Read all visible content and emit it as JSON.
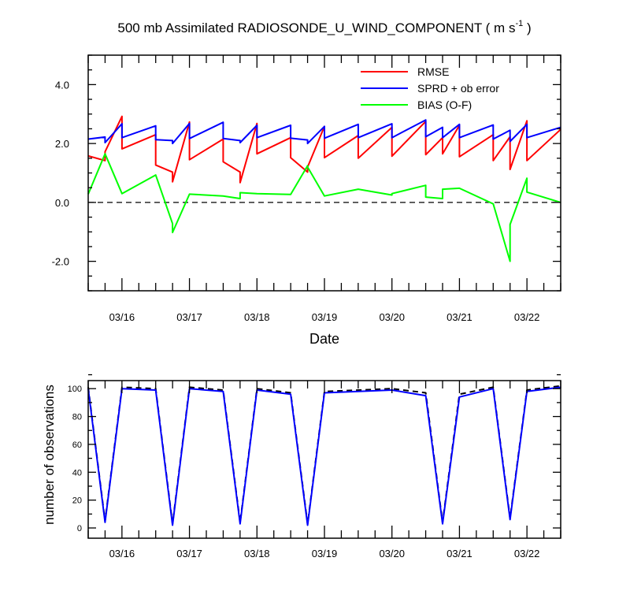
{
  "title": {
    "main": "500 mb Assimilated RADIOSONDE_U_WIND_COMPONENT ( m s",
    "superscript": "-1",
    "tail": " )"
  },
  "colors": {
    "rmse": "#ff0000",
    "sprd": "#0000ff",
    "bias": "#00ff00",
    "dashed": "#000000"
  },
  "chart_data": [
    {
      "type": "line",
      "title": "500 mb Assimilated RADIOSONDE_U_WIND_COMPONENT ( m s-1 )",
      "xlabel": "Date",
      "ylabel": "",
      "xlim": [
        0,
        7
      ],
      "ylim": [
        -3.0,
        5.0
      ],
      "grid": false,
      "legend_position": "top-right",
      "x_ticks": [
        {
          "x": 0.5,
          "label": "03/16"
        },
        {
          "x": 1.5,
          "label": "03/17"
        },
        {
          "x": 2.5,
          "label": "03/18"
        },
        {
          "x": 3.5,
          "label": "03/19"
        },
        {
          "x": 4.5,
          "label": "03/20"
        },
        {
          "x": 5.5,
          "label": "03/21"
        },
        {
          "x": 6.5,
          "label": "03/22"
        }
      ],
      "y_ticks": [
        {
          "y": 4.0,
          "label": "4.0"
        },
        {
          "y": 2.0,
          "label": "2.0"
        },
        {
          "y": 0.0,
          "label": "0.0"
        },
        {
          "y": -2.0,
          "label": "-2.0"
        }
      ],
      "reference_line": {
        "y": 0.0,
        "style": "dashed"
      },
      "series": [
        {
          "name": "RMSE",
          "color": "#ff0000",
          "x": [
            0,
            0.25,
            0.25,
            0.5,
            0.5,
            1.0,
            1.0,
            1.25,
            1.25,
            1.5,
            1.5,
            2.0,
            2.0,
            2.25,
            2.25,
            2.5,
            2.5,
            3.0,
            3.0,
            3.25,
            3.25,
            3.5,
            3.5,
            4.0,
            4.0,
            4.5,
            4.5,
            5.0,
            5.0,
            5.25,
            5.25,
            5.5,
            5.5,
            6.0,
            6.0,
            6.25,
            6.25,
            6.5,
            6.5,
            7.0
          ],
          "y": [
            1.58,
            1.42,
            1.72,
            2.92,
            1.82,
            2.3,
            1.27,
            1.03,
            0.7,
            2.73,
            1.45,
            2.15,
            1.38,
            1.03,
            0.67,
            2.68,
            1.65,
            2.2,
            1.52,
            1.03,
            1.2,
            2.58,
            1.52,
            2.27,
            1.5,
            2.55,
            1.57,
            2.75,
            1.62,
            2.2,
            1.65,
            2.62,
            1.55,
            2.3,
            1.42,
            2.23,
            1.12,
            2.77,
            1.42,
            2.48
          ]
        },
        {
          "name": "SPRD + ob error",
          "color": "#0000ff",
          "x": [
            0,
            0.25,
            0.25,
            0.5,
            0.5,
            1.0,
            1.0,
            1.25,
            1.25,
            1.5,
            1.5,
            2.0,
            2.0,
            2.25,
            2.25,
            2.5,
            2.5,
            3.0,
            3.0,
            3.25,
            3.25,
            3.5,
            3.5,
            4.0,
            4.0,
            4.5,
            4.5,
            5.0,
            5.0,
            5.25,
            5.25,
            5.5,
            5.5,
            6.0,
            6.0,
            6.25,
            6.25,
            6.5,
            6.5,
            7.0
          ],
          "y": [
            2.15,
            2.22,
            2.03,
            2.67,
            2.2,
            2.6,
            2.13,
            2.1,
            2.0,
            2.68,
            2.17,
            2.72,
            2.17,
            2.1,
            2.03,
            2.62,
            2.2,
            2.62,
            2.18,
            2.12,
            2.0,
            2.58,
            2.18,
            2.65,
            2.2,
            2.67,
            2.2,
            2.8,
            2.23,
            2.55,
            2.2,
            2.65,
            2.2,
            2.63,
            2.15,
            2.45,
            2.07,
            2.65,
            2.2,
            2.55
          ]
        },
        {
          "name": "BIAS (O-F)",
          "color": "#00ff00",
          "x": [
            0,
            0.25,
            0.5,
            1.0,
            1.25,
            1.25,
            1.5,
            2.0,
            2.25,
            2.25,
            2.5,
            3.0,
            3.25,
            3.25,
            3.5,
            4.0,
            4.5,
            4.5,
            5.0,
            5.0,
            5.25,
            5.25,
            5.5,
            6.0,
            6.25,
            6.25,
            6.5,
            6.5,
            7.0
          ],
          "y": [
            0.28,
            1.65,
            0.3,
            0.93,
            -0.72,
            -1.02,
            0.28,
            0.22,
            0.13,
            0.33,
            0.3,
            0.27,
            1.25,
            1.2,
            0.22,
            0.45,
            0.25,
            0.3,
            0.58,
            0.18,
            0.13,
            0.45,
            0.48,
            -0.05,
            -2.0,
            -0.75,
            0.82,
            0.35,
            0.0
          ]
        }
      ]
    },
    {
      "type": "line",
      "title": "",
      "xlabel": "",
      "ylabel": "number of observations",
      "xlim": [
        0,
        7
      ],
      "ylim": [
        0,
        112
      ],
      "grid": false,
      "x_ticks": [
        {
          "x": 0.5,
          "label": "03/16"
        },
        {
          "x": 1.5,
          "label": "03/17"
        },
        {
          "x": 2.5,
          "label": "03/18"
        },
        {
          "x": 3.5,
          "label": "03/19"
        },
        {
          "x": 4.5,
          "label": "03/20"
        },
        {
          "x": 5.5,
          "label": "03/21"
        },
        {
          "x": 6.5,
          "label": "03/22"
        }
      ],
      "y_ticks": [
        {
          "y": 0,
          "label": "0"
        },
        {
          "y": 20,
          "label": "20"
        },
        {
          "y": 40,
          "label": "40"
        },
        {
          "y": 60,
          "label": "60"
        },
        {
          "y": 80,
          "label": "80"
        },
        {
          "y": 100,
          "label": "100"
        }
      ],
      "series": [
        {
          "name": "",
          "color": "#000000",
          "style": "dashed",
          "x": [
            0,
            0.25,
            0.5,
            1.0,
            1.25,
            1.5,
            2.0,
            2.25,
            2.5,
            3.0,
            3.25,
            3.5,
            4.5,
            5.0,
            5.25,
            5.5,
            6.0,
            6.25,
            6.5,
            7.0
          ],
          "y": [
            101,
            5,
            101,
            100,
            3,
            101,
            99,
            4,
            100,
            97,
            3,
            98,
            100,
            97,
            4,
            96,
            101,
            7,
            99,
            102
          ]
        },
        {
          "name": "",
          "color": "#0000ff",
          "style": "solid",
          "x": [
            0,
            0.25,
            0.5,
            1.0,
            1.25,
            1.5,
            2.0,
            2.25,
            2.5,
            3.0,
            3.25,
            3.5,
            4.5,
            5.0,
            5.25,
            5.5,
            6.0,
            6.25,
            6.5,
            7.0
          ],
          "y": [
            100,
            4,
            100,
            99,
            2,
            100,
            98,
            3,
            99,
            96,
            2,
            97,
            99,
            95,
            3,
            94,
            100,
            6,
            98,
            101
          ]
        }
      ]
    }
  ]
}
